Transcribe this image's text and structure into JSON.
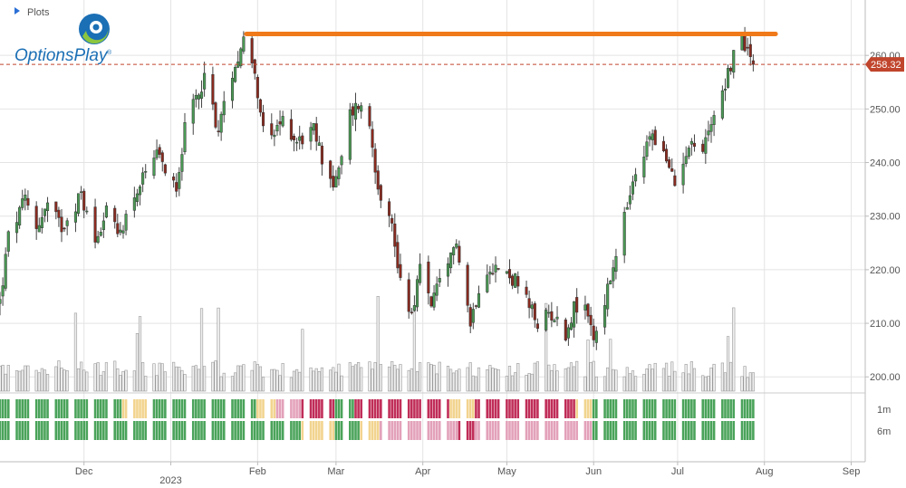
{
  "header": {
    "plots_label": "Plots",
    "plots_icon": "triangle-right-icon"
  },
  "brand": {
    "logo_text": "OptionsPlay",
    "reg_mark": "®"
  },
  "chart_data": {
    "type": "candlestick",
    "price_axis": {
      "ylim": [
        197.0,
        270.0
      ],
      "ticks": [
        200,
        210,
        220,
        230,
        240,
        250,
        260
      ],
      "tick_labels": [
        "200.00",
        "210.00",
        "220.00",
        "230.00",
        "240.00",
        "250.00",
        "260.00"
      ]
    },
    "last_price": {
      "value": 258.32,
      "label": "258.32",
      "color": "#c0452c"
    },
    "resistance_line": {
      "value": 264.0,
      "color": "#f07a1a"
    },
    "x_axis": {
      "labels": [
        "Dec",
        "2023",
        "Feb",
        "Mar",
        "Apr",
        "May",
        "Jun",
        "Jul",
        "Aug",
        "Sep"
      ],
      "label_dates": [
        "2022-12-01",
        "2023-01-01",
        "2023-02-01",
        "2023-03-01",
        "2023-04-01",
        "2023-05-01",
        "2023-06-01",
        "2023-07-01",
        "2023-08-01",
        "2023-09-01"
      ],
      "range": [
        "2022-11-01",
        "2023-09-06"
      ]
    },
    "anchors": [
      [
        "2022-11-01",
        214
      ],
      [
        "2022-11-04",
        226
      ],
      [
        "2022-11-10",
        233
      ],
      [
        "2022-11-14",
        228
      ],
      [
        "2022-11-18",
        232
      ],
      [
        "2022-11-23",
        228
      ],
      [
        "2022-11-30",
        234
      ],
      [
        "2022-12-05",
        225
      ],
      [
        "2022-12-09",
        232
      ],
      [
        "2022-12-13",
        226
      ],
      [
        "2022-12-19",
        234
      ],
      [
        "2022-12-27",
        241
      ],
      [
        "2023-01-03",
        236
      ],
      [
        "2023-01-06",
        246
      ],
      [
        "2023-01-10",
        252
      ],
      [
        "2023-01-13",
        256
      ],
      [
        "2023-01-18",
        246
      ],
      [
        "2023-01-23",
        257
      ],
      [
        "2023-01-27",
        263
      ],
      [
        "2023-01-31",
        258
      ],
      [
        "2023-02-02",
        248
      ],
      [
        "2023-02-06",
        244
      ],
      [
        "2023-02-10",
        248
      ],
      [
        "2023-02-15",
        244
      ],
      [
        "2023-02-21",
        246
      ],
      [
        "2023-02-24",
        241
      ],
      [
        "2023-02-28",
        236
      ],
      [
        "2023-03-02",
        238
      ],
      [
        "2023-03-06",
        249
      ],
      [
        "2023-03-09",
        251
      ],
      [
        "2023-03-13",
        247
      ],
      [
        "2023-03-16",
        236
      ],
      [
        "2023-03-21",
        228
      ],
      [
        "2023-03-24",
        218
      ],
      [
        "2023-03-28",
        212
      ],
      [
        "2023-03-31",
        220
      ],
      [
        "2023-04-04",
        214
      ],
      [
        "2023-04-10",
        220
      ],
      [
        "2023-04-13",
        226
      ],
      [
        "2023-04-18",
        210
      ],
      [
        "2023-04-21",
        217
      ],
      [
        "2023-04-25",
        221
      ],
      [
        "2023-05-01",
        219
      ],
      [
        "2023-05-04",
        218
      ],
      [
        "2023-05-08",
        214
      ],
      [
        "2023-05-12",
        210
      ],
      [
        "2023-05-17",
        212
      ],
      [
        "2023-05-22",
        208
      ],
      [
        "2023-05-25",
        213
      ],
      [
        "2023-05-30",
        212
      ],
      [
        "2023-06-01",
        207
      ],
      [
        "2023-06-06",
        216
      ],
      [
        "2023-06-09",
        222
      ],
      [
        "2023-06-13",
        232
      ],
      [
        "2023-06-16",
        237
      ],
      [
        "2023-06-22",
        246
      ],
      [
        "2023-06-27",
        240
      ],
      [
        "2023-06-30",
        236
      ],
      [
        "2023-07-05",
        244
      ],
      [
        "2023-07-10",
        242
      ],
      [
        "2023-07-13",
        248
      ],
      [
        "2023-07-18",
        255
      ],
      [
        "2023-07-21",
        260
      ],
      [
        "2023-07-24",
        263
      ],
      [
        "2023-07-27",
        260
      ],
      [
        "2023-07-28",
        258.32
      ]
    ],
    "volume": {
      "ymax": 150
    },
    "signal_rows": [
      {
        "label": "1m",
        "segments": [
          [
            "2022-11-01",
            "green"
          ],
          [
            "2022-12-15",
            "yellow"
          ],
          [
            "2022-12-26",
            "green"
          ],
          [
            "2023-02-01",
            "yellow"
          ],
          [
            "2023-02-08",
            "pink"
          ],
          [
            "2023-02-17",
            "red"
          ],
          [
            "2023-03-01",
            "green"
          ],
          [
            "2023-03-08",
            "red"
          ],
          [
            "2023-04-01",
            "green"
          ],
          [
            "2023-04-03",
            "red"
          ],
          [
            "2023-04-11",
            "yellow"
          ],
          [
            "2023-04-20",
            "red"
          ],
          [
            "2023-05-26",
            "yellow"
          ],
          [
            "2023-06-01",
            "red"
          ],
          [
            "2023-06-01",
            "green"
          ]
        ]
      },
      {
        "label": "6m",
        "segments": [
          [
            "2022-11-01",
            "green"
          ],
          [
            "2023-02-17",
            "yellow"
          ],
          [
            "2023-03-01",
            "green"
          ],
          [
            "2023-03-10",
            "yellow"
          ],
          [
            "2023-03-17",
            "pink"
          ],
          [
            "2023-04-14",
            "red"
          ],
          [
            "2023-04-20",
            "pink"
          ],
          [
            "2023-06-01",
            "green"
          ]
        ]
      }
    ],
    "colors": {
      "up": "#4a9a54",
      "down": "#8a2a1f",
      "signal_green": "#4aa35a",
      "signal_yellow": "#f2d48f",
      "signal_pink": "#e3a1b9",
      "signal_red": "#c02d58",
      "grid": "#e4e4e4",
      "volume_fill": "#eeeeee",
      "volume_stroke": "#9a9a9a"
    }
  }
}
